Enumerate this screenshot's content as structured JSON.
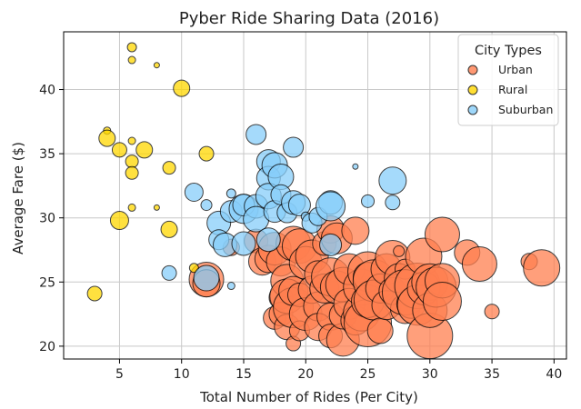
{
  "chart_data": {
    "type": "scatter",
    "title": "Pyber Ride Sharing Data (2016)",
    "xlabel": "Total Number of Rides (Per City)",
    "ylabel": "Average Fare ($)",
    "xlim": [
      0.5,
      41
    ],
    "ylim": [
      19,
      44.5
    ],
    "xticks": [
      5,
      10,
      15,
      20,
      25,
      30,
      35,
      40
    ],
    "yticks": [
      20,
      25,
      30,
      35,
      40
    ],
    "grid": true,
    "legend": {
      "title": "City Types",
      "placement": "top-right"
    },
    "series": [
      {
        "name": "Urban",
        "color": "#FF7F50",
        "x": [
          12,
          12,
          14,
          16,
          16.5,
          17,
          17.5,
          17.5,
          18,
          18,
          18,
          18.5,
          18.5,
          18.5,
          19,
          19,
          19,
          19,
          19.5,
          19.5,
          19.5,
          20,
          20,
          20.5,
          20.5,
          21,
          21,
          21,
          21.5,
          21.5,
          22,
          22,
          22,
          22,
          22.5,
          22.5,
          23,
          23,
          23,
          23.5,
          23.5,
          24,
          24,
          24.5,
          24.5,
          25,
          25,
          25,
          25,
          25.5,
          25.5,
          26,
          26,
          26.5,
          26.5,
          27,
          27,
          27.5,
          27.5,
          28,
          28,
          28,
          28.5,
          29,
          29,
          29.5,
          29.5,
          30,
          30,
          30,
          30.5,
          31,
          31,
          31,
          33,
          34,
          35,
          38,
          39
        ],
        "y": [
          25.2,
          24.9,
          27.7,
          28.2,
          26.6,
          26.8,
          27.6,
          22.2,
          23.8,
          26.6,
          22.5,
          25.1,
          21.5,
          23.9,
          20.2,
          28,
          23,
          24.3,
          27.8,
          24,
          21.2,
          26.5,
          22.5,
          27,
          24.4,
          23.1,
          25.6,
          21.5,
          24.5,
          28,
          22.3,
          25.4,
          20.8,
          29.1,
          24.6,
          28.4,
          20.5,
          24.8,
          22.4,
          26,
          23.3,
          29,
          22,
          22.6,
          24.6,
          21.8,
          25.8,
          25.4,
          23.5,
          25.1,
          23.6,
          24.5,
          21.2,
          26,
          23.2,
          24.3,
          26.9,
          25.3,
          27.4,
          22.9,
          26,
          24.2,
          23.3,
          24.7,
          23.2,
          27,
          24.5,
          25,
          20.8,
          22.8,
          24.6,
          28.7,
          25.1,
          23.5,
          27.3,
          26.4,
          22.7,
          26.6,
          26.1
        ],
        "size": [
          38,
          30,
          18,
          26,
          30,
          30,
          36,
          25,
          26,
          32,
          26,
          36,
          28,
          38,
          16,
          38,
          44,
          32,
          38,
          26,
          22,
          36,
          36,
          36,
          30,
          32,
          30,
          30,
          32,
          26,
          30,
          42,
          26,
          30,
          36,
          34,
          36,
          38,
          30,
          34,
          34,
          30,
          32,
          40,
          40,
          52,
          44,
          32,
          36,
          46,
          44,
          32,
          28,
          34,
          32,
          30,
          38,
          32,
          12,
          32,
          22,
          50,
          32,
          50,
          44,
          40,
          36,
          40,
          50,
          38,
          44,
          38,
          38,
          42,
          28,
          38,
          16,
          18,
          40
        ]
      },
      {
        "name": "Rural",
        "color": "#FFD700",
        "x": [
          3,
          4,
          4,
          5,
          5,
          6,
          6,
          6,
          6,
          6,
          6,
          7,
          8,
          8,
          9,
          9,
          10,
          11,
          12
        ],
        "y": [
          24.1,
          36.8,
          36.2,
          35.3,
          29.8,
          43.3,
          42.3,
          36,
          34.4,
          33.5,
          30.8,
          35.3,
          41.9,
          30.8,
          33.9,
          29.1,
          40.1,
          26.1,
          35
        ],
        "size": [
          16,
          8,
          18,
          16,
          20,
          10,
          8,
          8,
          14,
          14,
          8,
          18,
          6,
          6,
          14,
          18,
          18,
          10,
          16
        ]
      },
      {
        "name": "Suburban",
        "color": "#87CEFA",
        "x": [
          9,
          11,
          12,
          12,
          13,
          13,
          13.5,
          14,
          14,
          14,
          15,
          15,
          15,
          16,
          16,
          16,
          17,
          17,
          17,
          17,
          17.5,
          17.5,
          18,
          18,
          18.5,
          19,
          19,
          19.5,
          20,
          20.5,
          21,
          22,
          22,
          22,
          24,
          25,
          27,
          27
        ],
        "y": [
          25.7,
          32,
          31,
          25.3,
          29.6,
          28.3,
          27.9,
          31.9,
          30.5,
          24.7,
          28,
          30.7,
          31,
          36.5,
          30.9,
          29.9,
          34.4,
          33.1,
          31.7,
          28.3,
          34.1,
          30.5,
          33.2,
          31.8,
          30.4,
          35.5,
          31.2,
          31,
          30.1,
          29.6,
          30.1,
          31.2,
          30.9,
          27.9,
          34,
          31.3,
          32.9,
          31.2
        ],
        "size": [
          16,
          20,
          12,
          28,
          26,
          22,
          26,
          10,
          24,
          8,
          26,
          32,
          24,
          22,
          26,
          28,
          26,
          26,
          28,
          26,
          28,
          24,
          28,
          22,
          22,
          22,
          26,
          24,
          10,
          22,
          20,
          26,
          32,
          24,
          6,
          14,
          30,
          16
        ]
      }
    ]
  }
}
